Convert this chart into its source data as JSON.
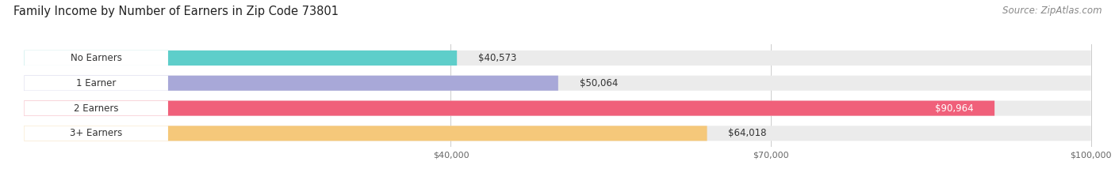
{
  "title": "Family Income by Number of Earners in Zip Code 73801",
  "source": "Source: ZipAtlas.com",
  "categories": [
    "No Earners",
    "1 Earner",
    "2 Earners",
    "3+ Earners"
  ],
  "values": [
    40573,
    50064,
    90964,
    64018
  ],
  "bar_colors": [
    "#5ececa",
    "#a8a8d8",
    "#f0607a",
    "#f5c87a"
  ],
  "xmin": 0,
  "xmax": 100000,
  "xticks": [
    40000,
    70000,
    100000
  ],
  "xtick_labels": [
    "$40,000",
    "$70,000",
    "$100,000"
  ],
  "value_labels": [
    "$40,573",
    "$50,064",
    "$90,964",
    "$64,018"
  ],
  "title_fontsize": 10.5,
  "source_fontsize": 8.5,
  "label_fontsize": 8.5,
  "value_fontsize": 8.5,
  "background_color": "#ffffff",
  "bar_bg_color": "#ebebeb"
}
